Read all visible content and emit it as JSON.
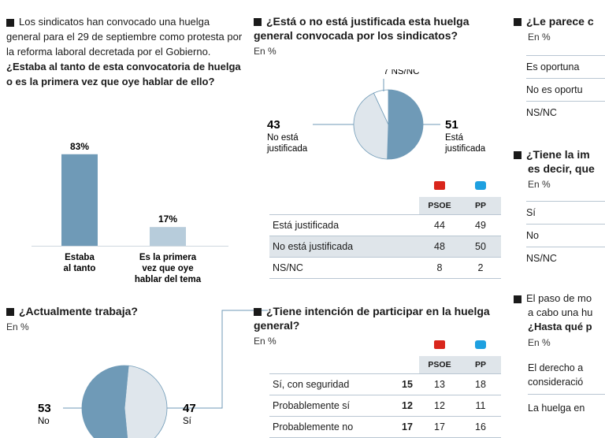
{
  "chart_data": [
    {
      "type": "bar",
      "title": "¿Estaba al tanto de esta convocatoria de huelga o es la primera vez que oye hablar de ello?",
      "intro": "Los sindicatos han convocado una huelga general para el 29 de septiembre como protesta por la reforma laboral decretada por el Gobierno.",
      "categories": [
        "Estaba al tanto",
        "Es la primera vez que oye hablar del tema"
      ],
      "values": [
        83,
        17
      ],
      "value_labels": [
        "83%",
        "17%"
      ],
      "ylim": [
        0,
        100
      ]
    },
    {
      "type": "pie",
      "title": "¿Está o no está justificada esta huelga general convocada por los sindicatos?",
      "subtitle": "En %",
      "slices": [
        {
          "label": "Está justificada",
          "value": 51
        },
        {
          "label": "No está justificada",
          "value": 43
        },
        {
          "label": "NS/NC",
          "value": 7
        }
      ],
      "value_labels": [
        "51",
        "43",
        "7 NS/NC"
      ]
    },
    {
      "type": "table",
      "columns": [
        "PSOE",
        "PP"
      ],
      "rows": [
        {
          "label": "Está justificada",
          "values": [
            44,
            49
          ]
        },
        {
          "label": "No está justificada",
          "values": [
            48,
            50
          ]
        },
        {
          "label": "NS/NC",
          "values": [
            8,
            2
          ]
        }
      ]
    },
    {
      "type": "pie",
      "title": "¿Actualmente trabaja?",
      "subtitle": "En %",
      "slices": [
        {
          "label": "No",
          "value": 53
        },
        {
          "label": "Sí",
          "value": 47
        }
      ]
    },
    {
      "type": "table",
      "title": "¿Tiene intención de participar en la huelga general?",
      "subtitle": "En %",
      "columns": [
        "",
        "PSOE",
        "PP"
      ],
      "rows": [
        {
          "label": "Sí, con seguridad",
          "values": [
            15,
            13,
            18
          ]
        },
        {
          "label": "Probablemente sí",
          "values": [
            12,
            12,
            11
          ]
        },
        {
          "label": "Probablemente no",
          "values": [
            17,
            17,
            16
          ]
        }
      ]
    }
  ],
  "right_column": {
    "q1_title": "¿Le parece c",
    "q1_sub": "En %",
    "q1_rows": [
      "Es oportuna",
      "No es oportu",
      "NS/NC"
    ],
    "q2_title_line1": "¿Tiene la im",
    "q2_title_line2": "es decir, que",
    "q2_sub": "En %",
    "q2_rows": [
      "Sí",
      "No",
      "NS/NC"
    ],
    "q3_line1": "El paso de mo",
    "q3_line2": "a cabo una hu",
    "q3_line3": "¿Hasta qué p",
    "q3_sub": "En %",
    "q3_rows": [
      "El derecho a",
      "consideració",
      "La huelga en"
    ]
  },
  "colors": {
    "bar_dark": "#6f9ab7",
    "bar_light": "#b7ccdb",
    "pie_dark": "#6f9ab7",
    "pie_light": "#dfe6ec",
    "table_shade": "#dfe5ea",
    "rule": "#b9c6d2",
    "psoe": "#d9261c",
    "pp": "#1ea0e0"
  }
}
